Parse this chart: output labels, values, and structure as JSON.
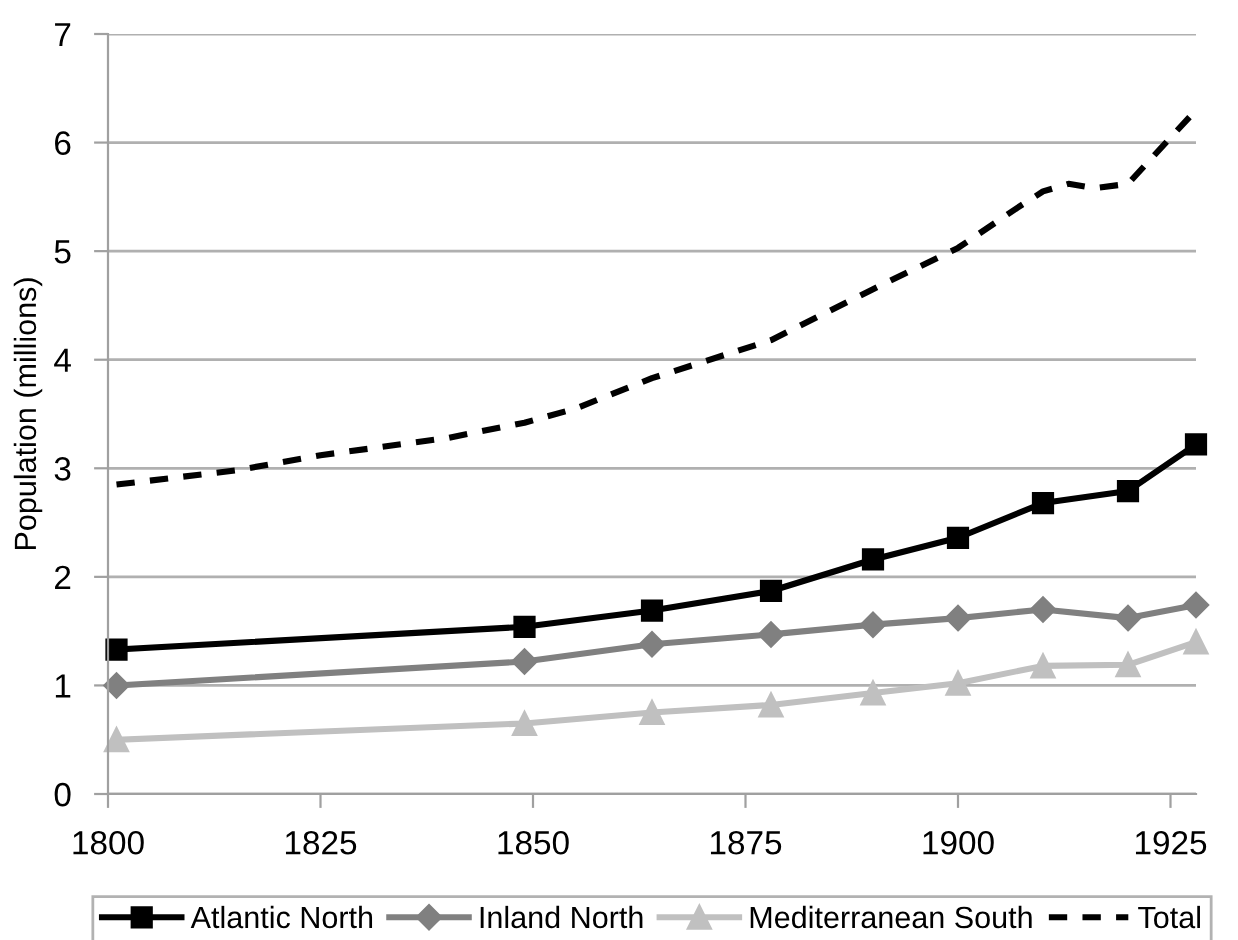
{
  "chart_data": {
    "type": "line",
    "ylabel": "Population (millions)",
    "xlim": [
      1800,
      1928
    ],
    "xticks": [
      1800,
      1825,
      1850,
      1875,
      1900,
      1925
    ],
    "ylim": [
      0,
      7
    ],
    "yticks": [
      0,
      1,
      2,
      3,
      4,
      5,
      6,
      7
    ],
    "grid": "y",
    "legend": "bottom",
    "series": [
      {
        "name": "Atlantic North",
        "color": "#000000",
        "marker": "square",
        "line_style": "solid",
        "x": [
          1801,
          1849,
          1864,
          1878,
          1890,
          1900,
          1910,
          1920,
          1928
        ],
        "values": [
          1.33,
          1.54,
          1.69,
          1.87,
          2.16,
          2.36,
          2.68,
          2.79,
          3.22
        ]
      },
      {
        "name": "Inland North",
        "color": "#808080",
        "marker": "diamond",
        "line_style": "solid",
        "x": [
          1801,
          1849,
          1864,
          1878,
          1890,
          1900,
          1910,
          1920,
          1928
        ],
        "values": [
          1.0,
          1.22,
          1.38,
          1.47,
          1.56,
          1.62,
          1.7,
          1.62,
          1.74
        ]
      },
      {
        "name": "Mediterranean South",
        "color": "#c0c0c0",
        "marker": "triangle",
        "line_style": "solid",
        "x": [
          1801,
          1849,
          1864,
          1878,
          1890,
          1900,
          1910,
          1920,
          1928
        ],
        "values": [
          0.5,
          0.65,
          0.75,
          0.82,
          0.93,
          1.02,
          1.18,
          1.19,
          1.4
        ]
      },
      {
        "name": "Total",
        "color": "#000000",
        "marker": "none",
        "line_style": "dashed",
        "x": [
          1801,
          1815,
          1825,
          1840,
          1849,
          1855,
          1864,
          1870,
          1878,
          1890,
          1900,
          1907,
          1910,
          1913,
          1916,
          1920,
          1928
        ],
        "values": [
          2.85,
          2.98,
          3.12,
          3.28,
          3.42,
          3.55,
          3.83,
          3.98,
          4.18,
          4.65,
          5.03,
          5.4,
          5.55,
          5.62,
          5.58,
          5.62,
          6.3
        ]
      }
    ]
  }
}
